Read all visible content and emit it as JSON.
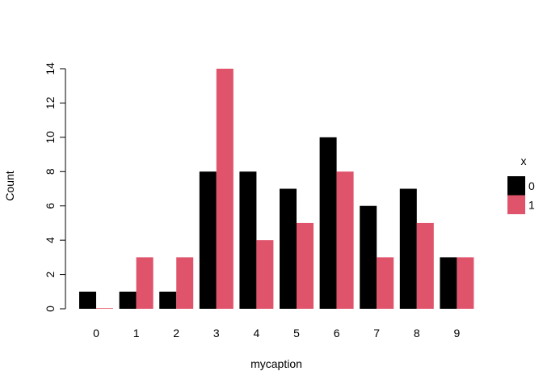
{
  "chart_data": {
    "type": "bar",
    "grouped": true,
    "title": "",
    "xlabel": "mycaption",
    "ylabel": "Count",
    "categories": [
      "0",
      "1",
      "2",
      "3",
      "4",
      "5",
      "6",
      "7",
      "8",
      "9"
    ],
    "ylim": [
      0,
      14
    ],
    "yticks": [
      "0",
      "2",
      "4",
      "6",
      "8",
      "10",
      "12",
      "14"
    ],
    "grid": false,
    "legend": {
      "title": "x",
      "placement": "right",
      "entries": [
        "0",
        "1"
      ]
    },
    "series": [
      {
        "name": "0",
        "color": "#000000",
        "values": [
          1,
          1,
          1,
          8,
          8,
          7,
          10,
          6,
          7,
          3
        ]
      },
      {
        "name": "1",
        "color": "#DF536B",
        "values": [
          0,
          3,
          3,
          14,
          4,
          5,
          8,
          3,
          5,
          3
        ]
      }
    ]
  }
}
